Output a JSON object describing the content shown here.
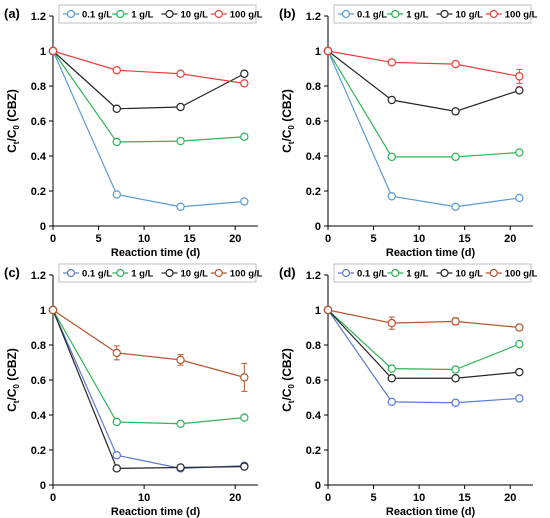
{
  "chart_data": [
    {
      "panel_label": "(a)",
      "type": "line",
      "xlabel": "Reaction time (d)",
      "ylabel": "Ct/C0 (CBZ)",
      "ylabel_parts": {
        "c": "C",
        "t": "t",
        "slash": "/C",
        "zero": "0",
        "rest": " (CBZ)"
      },
      "x": [
        0,
        7,
        14,
        21
      ],
      "xlim": [
        0,
        22.5
      ],
      "xticks": [
        0,
        5,
        10,
        15,
        20
      ],
      "ylim": [
        0,
        1.2
      ],
      "yticks": [
        "0",
        "0.2",
        "0.4",
        "0.6",
        "0.8",
        "1",
        "1.2"
      ],
      "legend_position": "top",
      "series": [
        {
          "name": "0.1 g/L",
          "color": "#5b9bd5",
          "values": [
            1,
            0.18,
            0.11,
            0.14
          ],
          "errors": [
            0,
            0,
            0,
            0
          ]
        },
        {
          "name": "1 g/L",
          "color": "#2fb457",
          "values": [
            1,
            0.48,
            0.485,
            0.51
          ],
          "errors": [
            0,
            0,
            0,
            0
          ]
        },
        {
          "name": "10 g/L",
          "color": "#262626",
          "values": [
            1,
            0.67,
            0.68,
            0.87
          ],
          "errors": [
            0,
            0,
            0,
            0
          ]
        },
        {
          "name": "100 g/L",
          "color": "#e8413c",
          "values": [
            1,
            0.89,
            0.87,
            0.815
          ],
          "errors": [
            0,
            0,
            0,
            0
          ]
        }
      ]
    },
    {
      "panel_label": "(b)",
      "type": "line",
      "xlabel": "Reaction time (d)",
      "ylabel": "Ct/C0 (CBZ)",
      "ylabel_parts": {
        "c": "C",
        "t": "t",
        "slash": "/C",
        "zero": "0",
        "rest": " (CBZ)"
      },
      "x": [
        0,
        7,
        14,
        21
      ],
      "xlim": [
        0,
        22.5
      ],
      "xticks": [
        0,
        5,
        10,
        15,
        20
      ],
      "ylim": [
        0,
        1.2
      ],
      "yticks": [
        "0",
        "0.2",
        "0.4",
        "0.6",
        "0.8",
        "1",
        "1.2"
      ],
      "legend_position": "top",
      "series": [
        {
          "name": "0.1 g/L",
          "color": "#5b9bd5",
          "values": [
            1,
            0.17,
            0.11,
            0.16
          ],
          "errors": [
            0,
            0,
            0,
            0
          ]
        },
        {
          "name": "1 g/L",
          "color": "#2fb457",
          "values": [
            1,
            0.395,
            0.395,
            0.42
          ],
          "errors": [
            0,
            0,
            0,
            0
          ]
        },
        {
          "name": "10 g/L",
          "color": "#262626",
          "values": [
            1,
            0.72,
            0.655,
            0.775
          ],
          "errors": [
            0,
            0,
            0,
            0
          ]
        },
        {
          "name": "100 g/L",
          "color": "#e8413c",
          "values": [
            1,
            0.935,
            0.925,
            0.855
          ],
          "errors": [
            0,
            0,
            0,
            0.04
          ]
        }
      ]
    },
    {
      "panel_label": "(c)",
      "type": "line",
      "xlabel": "Reaction time (d)",
      "ylabel": "Ct/C0 (CBZ)",
      "ylabel_parts": {
        "c": "C",
        "t": "t",
        "slash": "/C",
        "zero": "0",
        "rest": " (CBZ)"
      },
      "x": [
        0,
        7,
        14,
        21
      ],
      "xlim": [
        0,
        22.5
      ],
      "xticks": [
        0,
        10,
        20
      ],
      "ylim": [
        0,
        1.2
      ],
      "yticks": [
        "0",
        "0.2",
        "0.4",
        "0.6",
        "0.8",
        "1",
        "1.2"
      ],
      "legend_position": "top",
      "series": [
        {
          "name": "0.1 g/L",
          "color": "#5b7bd5",
          "values": [
            1,
            0.17,
            0.095,
            0.11
          ],
          "errors": [
            0,
            0,
            0,
            0
          ]
        },
        {
          "name": "1 g/L",
          "color": "#2fb457",
          "values": [
            1,
            0.36,
            0.35,
            0.385
          ],
          "errors": [
            0,
            0,
            0,
            0
          ]
        },
        {
          "name": "10 g/L",
          "color": "#262626",
          "values": [
            1,
            0.095,
            0.1,
            0.105
          ],
          "errors": [
            0,
            0,
            0,
            0
          ]
        },
        {
          "name": "100 g/L",
          "color": "#b5582e",
          "values": [
            1,
            0.755,
            0.715,
            0.615
          ],
          "errors": [
            0,
            0.04,
            0.03,
            0.08
          ]
        }
      ]
    },
    {
      "panel_label": "(d)",
      "type": "line",
      "xlabel": "Reaction time (d)",
      "ylabel": "Ct/C0 (CBZ)",
      "ylabel_parts": {
        "c": "C",
        "t": "t",
        "slash": "/C",
        "zero": "0",
        "rest": " (CBZ)"
      },
      "x": [
        0,
        7,
        14,
        21
      ],
      "xlim": [
        0,
        22.5
      ],
      "xticks": [
        0,
        5,
        10,
        15,
        20
      ],
      "ylim": [
        0,
        1.2
      ],
      "yticks": [
        "0",
        "0.2",
        "0.4",
        "0.6",
        "0.8",
        "1",
        "1.2"
      ],
      "legend_position": "top",
      "series": [
        {
          "name": "0.1 g/L",
          "color": "#5b7bd5",
          "values": [
            1,
            0.475,
            0.47,
            0.495
          ],
          "errors": [
            0,
            0,
            0,
            0
          ]
        },
        {
          "name": "1 g/L",
          "color": "#2fb457",
          "values": [
            1,
            0.665,
            0.66,
            0.805
          ],
          "errors": [
            0,
            0,
            0,
            0
          ]
        },
        {
          "name": "10 g/L",
          "color": "#262626",
          "values": [
            1,
            0.61,
            0.61,
            0.645
          ],
          "errors": [
            0,
            0,
            0,
            0
          ]
        },
        {
          "name": "100 g/L",
          "color": "#b5582e",
          "values": [
            1,
            0.925,
            0.935,
            0.9
          ],
          "errors": [
            0,
            0.035,
            0.02,
            0.015
          ]
        }
      ]
    }
  ]
}
